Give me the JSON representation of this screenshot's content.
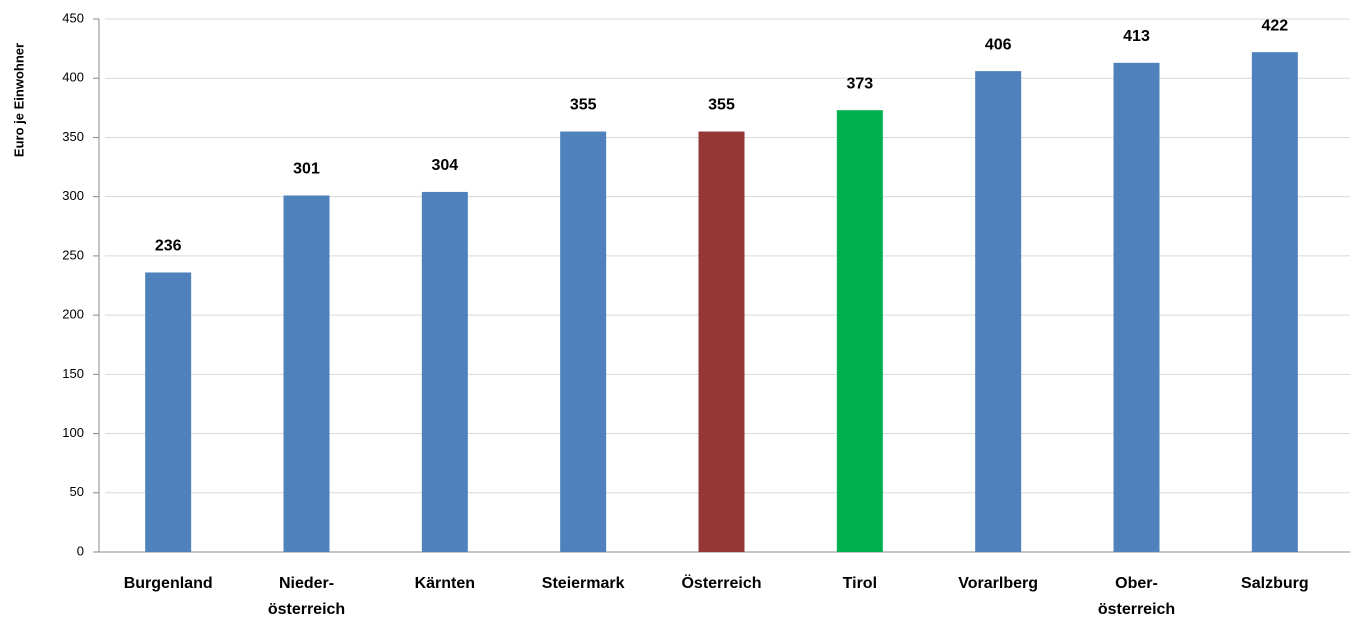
{
  "chart_data": {
    "type": "bar",
    "y_axis_label": "Euro je Einwohner",
    "categories": [
      "Burgenland",
      "Nieder-\nösterreich",
      "Kärnten",
      "Steiermark",
      "Österreich",
      "Tirol",
      "Vorarlberg",
      "Ober-\nösterreich",
      "Salzburg"
    ],
    "values": [
      236,
      301,
      304,
      355,
      355,
      373,
      406,
      413,
      422
    ],
    "colors": [
      "#4f81bd",
      "#4f81bd",
      "#4f81bd",
      "#4f81bd",
      "#953735",
      "#00b050",
      "#4f81bd",
      "#4f81bd",
      "#4f81bd"
    ],
    "ylim": [
      0,
      450
    ],
    "yticks": [
      0,
      50,
      100,
      150,
      200,
      250,
      300,
      350,
      400,
      450
    ],
    "grid": true
  }
}
